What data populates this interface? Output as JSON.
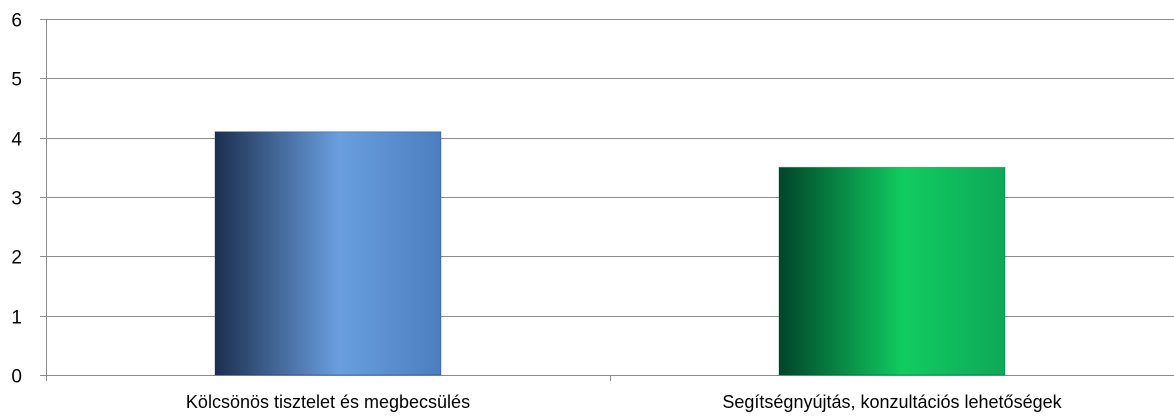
{
  "chart_data": {
    "type": "bar",
    "categories": [
      "Kölcsönös tisztelet és megbecsülés",
      "Segítségnyújtás, konzultációs lehetőségek"
    ],
    "values": [
      4.1,
      3.5
    ],
    "ylim": [
      0,
      6
    ],
    "yticks": [
      "0",
      "1",
      "2",
      "3",
      "4",
      "5",
      "6"
    ],
    "grid": true,
    "legend": "none",
    "title": "",
    "xlabel": "",
    "ylabel": "",
    "bar_colors": [
      {
        "dark": "#1c2f4f",
        "light": "#6a9fdf",
        "mid": "#4a7ebf"
      },
      {
        "dark": "#00452a",
        "light": "#10cc60",
        "mid": "#0ea858"
      }
    ],
    "grid_color": "#8c8c8c",
    "axis_color": "#8c8c8c"
  }
}
